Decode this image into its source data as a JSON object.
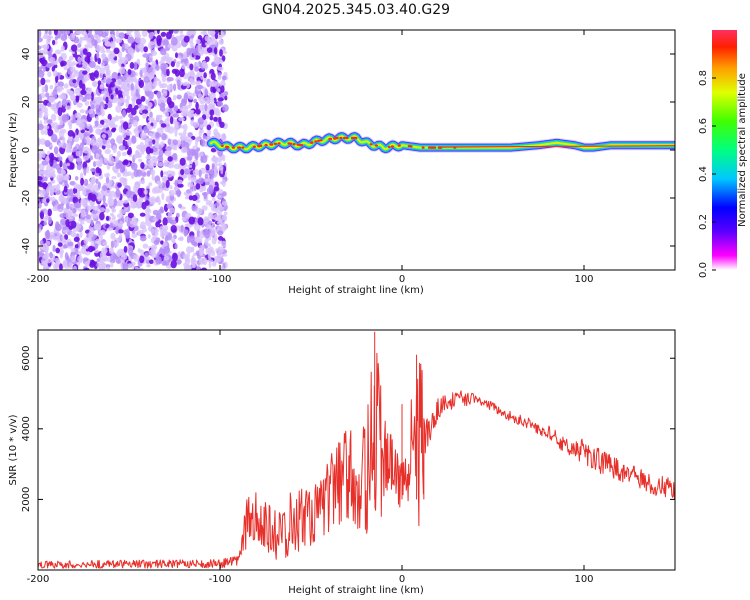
{
  "figure_title": "GN04.2025.345.03.40.G29",
  "colors": {
    "snr_line": "#e8302b",
    "spectrogram_noise": "#6a0fe0",
    "ridge_core": "#ff2a1a"
  },
  "chart_data": [
    {
      "type": "heatmap",
      "xlabel": "Height of straight line (km)",
      "ylabel": "Frequency (Hz)",
      "xlim": [
        -200,
        150
      ],
      "ylim": [
        -50,
        50
      ],
      "xticks": [
        -200,
        -100,
        0,
        100
      ],
      "yticks": [
        -40,
        -20,
        0,
        20,
        40
      ],
      "x_tick_labels": [
        "-200",
        "-100",
        "0",
        "100"
      ],
      "y_tick_labels": [
        "-40",
        "-20",
        "0",
        "20",
        "40"
      ],
      "noise_region_x": [
        -200,
        -100
      ],
      "ridge": {
        "x": [
          -105,
          -95,
          -85,
          -75,
          -65,
          -55,
          -45,
          -35,
          -25,
          -20,
          -10,
          0,
          10,
          20,
          40,
          60,
          75,
          85,
          95,
          100,
          105,
          115,
          130,
          150
        ],
        "freq": [
          3,
          1,
          1,
          2,
          3,
          2,
          4,
          5,
          5,
          3,
          1,
          2,
          1,
          1,
          1,
          1,
          2,
          3,
          2,
          1,
          1,
          2,
          2,
          2
        ]
      },
      "colorbar": {
        "label": "Normalized spectral amplitude",
        "range": [
          0,
          1
        ],
        "ticks": [
          0.0,
          0.2,
          0.4,
          0.6,
          0.8
        ],
        "tick_labels": [
          "0.0",
          "0.2",
          "0.4",
          "0.6",
          "0.8"
        ]
      }
    },
    {
      "type": "line",
      "xlabel": "Height of straight line (km)",
      "ylabel": "SNR (10 * v/v)",
      "xlim": [
        -200,
        150
      ],
      "ylim": [
        0,
        6800
      ],
      "xticks": [
        -200,
        -100,
        0,
        100
      ],
      "yticks": [
        2000,
        4000,
        6000
      ],
      "x_tick_labels": [
        "-200",
        "-100",
        "0",
        "100"
      ],
      "y_tick_labels": [
        "2000",
        "4000",
        "6000"
      ],
      "series": [
        {
          "name": "SNR",
          "x": [
            -200,
            -150,
            -100,
            -90,
            -85,
            -80,
            -70,
            -60,
            -50,
            -40,
            -30,
            -20,
            -15,
            -10,
            0,
            5,
            10,
            15,
            20,
            25,
            30,
            40,
            50,
            60,
            70,
            80,
            90,
            100,
            110,
            120,
            130,
            140,
            150
          ],
          "upper": [
            250,
            280,
            300,
            400,
            2100,
            2200,
            1700,
            2400,
            2300,
            3200,
            4100,
            4200,
            6750,
            4500,
            3000,
            4800,
            6100,
            4200,
            4900,
            5000,
            5100,
            5000,
            4750,
            4500,
            4300,
            4100,
            3800,
            3700,
            3400,
            3100,
            2900,
            2700,
            2600
          ],
          "lower": [
            50,
            50,
            60,
            80,
            700,
            900,
            200,
            400,
            700,
            1100,
            1300,
            1000,
            900,
            1700,
            1500,
            2000,
            1000,
            3600,
            4300,
            4500,
            4600,
            4700,
            4500,
            4200,
            4000,
            3700,
            3300,
            3000,
            2700,
            2500,
            2300,
            2100,
            2000
          ]
        }
      ]
    }
  ]
}
